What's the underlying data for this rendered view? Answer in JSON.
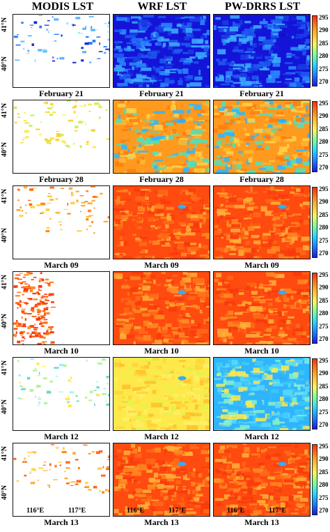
{
  "columns": [
    "MODIS LST",
    "WRF LST",
    "PW-DRRS LST"
  ],
  "rows": [
    {
      "date": "February 21",
      "modis_fill": "sparse-blue",
      "wrf_fill": "cold",
      "pw_fill": "cold"
    },
    {
      "date": "February 28",
      "modis_fill": "sparse-yellow",
      "wrf_fill": "warm",
      "pw_fill": "warm"
    },
    {
      "date": "March 09",
      "modis_fill": "sparse-orange",
      "wrf_fill": "hot",
      "pw_fill": "hot"
    },
    {
      "date": "March 10",
      "modis_fill": "dense-red",
      "wrf_fill": "hot",
      "pw_fill": "hot"
    },
    {
      "date": "March 12",
      "modis_fill": "sparse-cyan",
      "wrf_fill": "mild",
      "pw_fill": "mild-blue"
    },
    {
      "date": "March 13",
      "modis_fill": "sparse-orange",
      "wrf_fill": "hot",
      "pw_fill": "hot"
    }
  ],
  "lat_labels": [
    "41°N",
    "40°N"
  ],
  "lon_labels": [
    "116°E",
    "117°E"
  ],
  "colorbar": {
    "ticks": [
      "295",
      "290",
      "285",
      "280",
      "275",
      "270"
    ],
    "min": 270,
    "max": 295
  },
  "colors": {
    "cold": "#1e88ff",
    "hot": "#ff5a1a",
    "mild": "#ffe94a",
    "deep_blue": "#1010c8"
  }
}
